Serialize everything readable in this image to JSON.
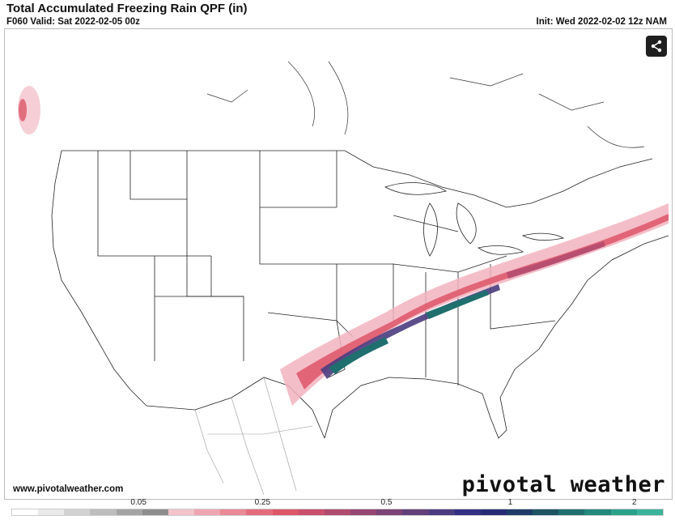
{
  "header": {
    "title": "Total Accumulated Freezing Rain QPF (in)",
    "valid": "F060 Valid: Sat 2022-02-05 00z",
    "init": "Init: Wed 2022-02-02 12z NAM"
  },
  "footer": {
    "site_url": "www.pivotalweather.com",
    "brand": "pivotal weather"
  },
  "legend": {
    "ticks": [
      {
        "label": "0.05",
        "pos": 0.195
      },
      {
        "label": "0.25",
        "pos": 0.385
      },
      {
        "label": "0.5",
        "pos": 0.575
      },
      {
        "label": "1",
        "pos": 0.765
      },
      {
        "label": "2",
        "pos": 0.955
      }
    ],
    "colors": [
      "#ffffff",
      "#e9e9e9",
      "#d2d2d2",
      "#bdbdbd",
      "#a4a4a4",
      "#8d8d8d",
      "#f4c3cc",
      "#efa5b0",
      "#ea8896",
      "#e46b7c",
      "#dd5668",
      "#cb4e6c",
      "#b04a6e",
      "#964672",
      "#7c4376",
      "#633f7a",
      "#4a3c7f",
      "#322f82",
      "#262b74",
      "#1e3b6a",
      "#1d5363",
      "#1f6f6f",
      "#23897c",
      "#2aa28a",
      "#3bb39a"
    ]
  },
  "icons": {
    "share": "share-icon"
  }
}
